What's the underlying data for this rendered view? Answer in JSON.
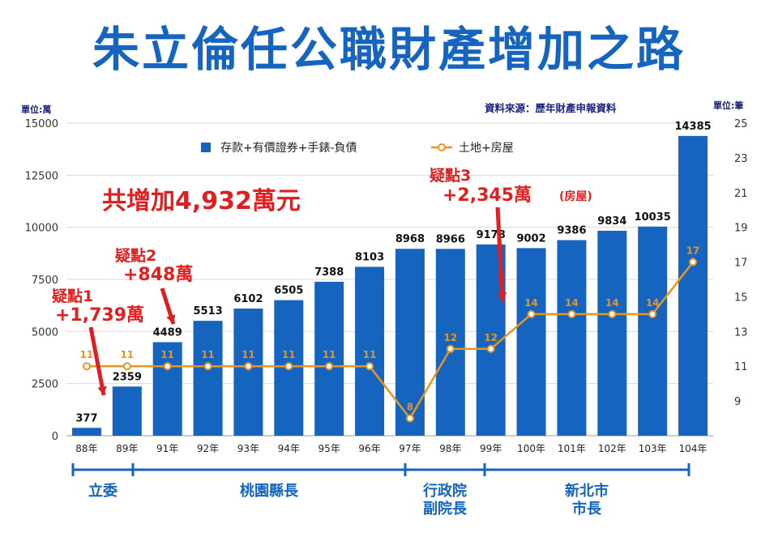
{
  "title": "朱立倫任公職財產增加之路",
  "source": "資料來源：歷年財產申報資料",
  "unit_left": "單位:萬",
  "unit_right": "單位:筆",
  "colors": {
    "bar": "#1565c0",
    "line": "#e8951f",
    "annotation": "#e02020",
    "phase": "#1565c0"
  },
  "chart_data": {
    "type": "bar",
    "title": "朱立倫任公職財產增加之路",
    "categories": [
      "88年",
      "89年",
      "91年",
      "92年",
      "93年",
      "94年",
      "95年",
      "96年",
      "97年",
      "98年",
      "99年",
      "100年",
      "101年",
      "102年",
      "103年",
      "104年"
    ],
    "series": [
      {
        "name": "存款+有價證券+手錶-負債",
        "type": "bar",
        "axis": "left",
        "values": [
          377,
          2359,
          4489,
          5513,
          6102,
          6505,
          7388,
          8103,
          8968,
          8966,
          9178,
          9002,
          9386,
          9834,
          10035,
          14385
        ]
      },
      {
        "name": "土地+房屋",
        "type": "line",
        "axis": "right",
        "values": [
          11,
          11,
          11,
          11,
          11,
          11,
          11,
          11,
          8,
          12,
          12,
          14,
          14,
          14,
          14,
          17
        ]
      }
    ],
    "y_left": {
      "min": 0,
      "max": 15000,
      "ticks": [
        0,
        2500,
        5000,
        7500,
        10000,
        12500,
        15000
      ]
    },
    "y_right": {
      "min": 7,
      "max": 25,
      "ticks": [
        9,
        11,
        13,
        15,
        17,
        19,
        21,
        23,
        25
      ]
    },
    "grid": true,
    "legend_position": "top-center"
  },
  "annotations": {
    "total": "共增加4,932萬元",
    "d1_title": "疑點1",
    "d1_value": "+1,739萬",
    "d2_title": "疑點2",
    "d2_value": "+848萬",
    "d3_title": "疑點3",
    "d3_value": "+2,345萬",
    "d3_note": "(房屋)"
  },
  "phases": [
    {
      "label": "立委",
      "from": 0,
      "to": 1
    },
    {
      "label": "桃園縣長",
      "from": 2,
      "to": 8
    },
    {
      "label": "行政院\n副院長",
      "from": 9,
      "to": 10
    },
    {
      "label": "新北市\n市長",
      "from": 11,
      "to": 15
    }
  ]
}
